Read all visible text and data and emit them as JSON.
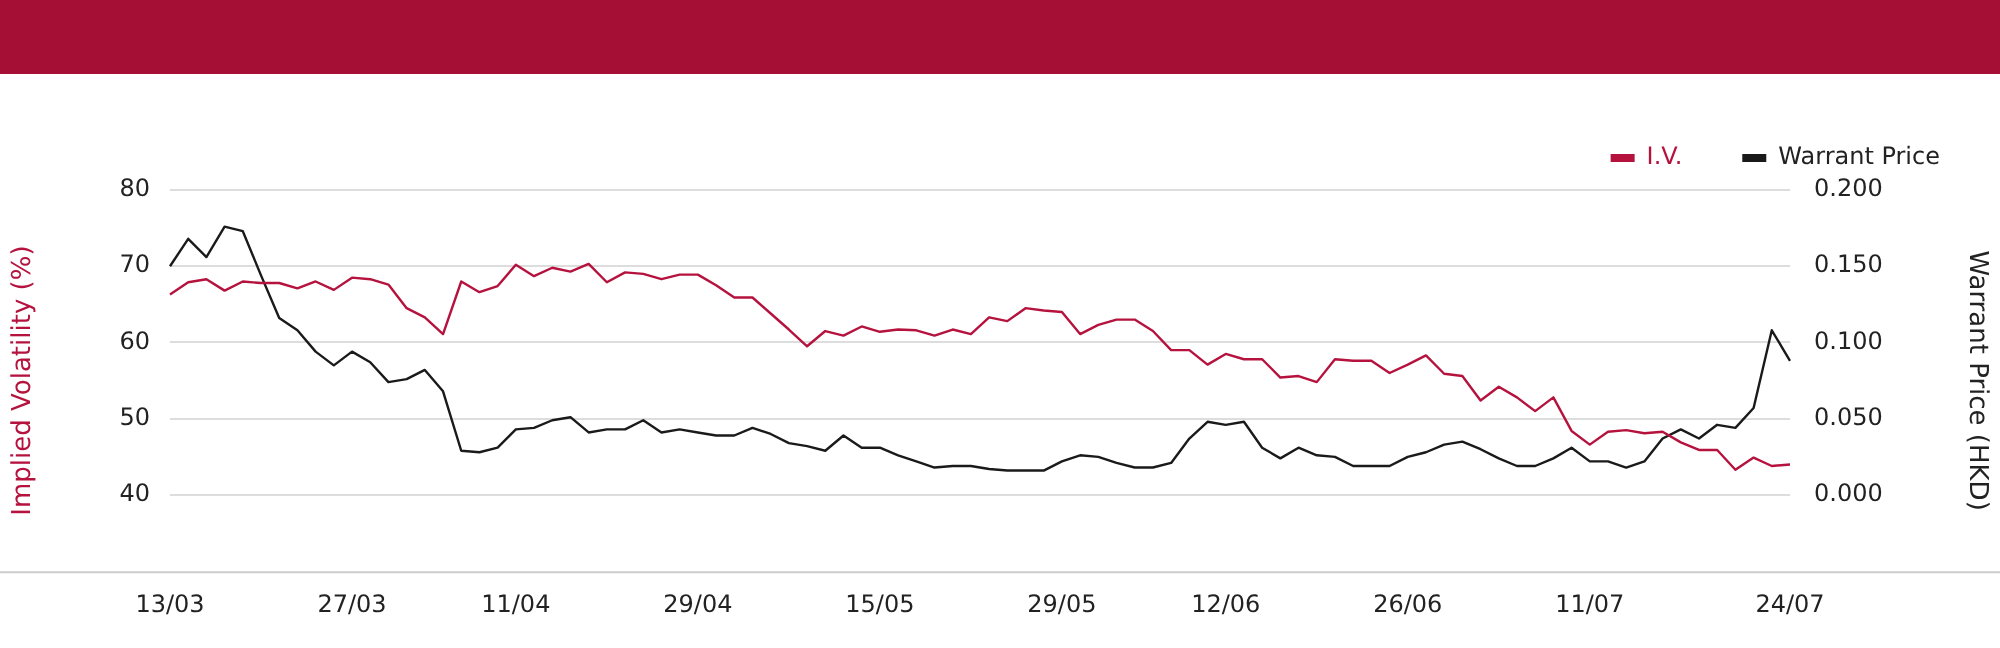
{
  "chart_data": {
    "type": "line",
    "categories": [
      "13/03",
      null,
      null,
      null,
      null,
      null,
      null,
      null,
      null,
      null,
      "27/03",
      null,
      null,
      null,
      null,
      null,
      null,
      null,
      null,
      "11/04",
      null,
      null,
      null,
      null,
      null,
      null,
      null,
      null,
      null,
      "29/04",
      null,
      null,
      null,
      null,
      null,
      null,
      null,
      null,
      null,
      "15/05",
      null,
      null,
      null,
      null,
      null,
      null,
      null,
      null,
      null,
      "29/05",
      null,
      null,
      null,
      null,
      null,
      null,
      null,
      null,
      "12/06",
      null,
      null,
      null,
      null,
      null,
      null,
      null,
      null,
      null,
      "26/06",
      null,
      null,
      null,
      null,
      null,
      null,
      null,
      null,
      null,
      "11/07",
      null,
      null,
      null,
      null,
      null,
      null,
      null,
      null,
      null,
      null,
      "24/07"
    ],
    "series": [
      {
        "name": "I.V.",
        "color": "#b5123e",
        "values": [
          66.3,
          67.9,
          68.3,
          66.8,
          68.0,
          67.8,
          67.8,
          67.1,
          68.0,
          66.9,
          68.5,
          68.3,
          67.6,
          64.5,
          63.3,
          61.1,
          68.0,
          66.6,
          67.4,
          70.2,
          68.7,
          69.8,
          69.3,
          70.3,
          67.9,
          69.2,
          69.0,
          68.3,
          68.9,
          68.9,
          67.5,
          65.9,
          65.9,
          63.8,
          61.7,
          59.5,
          61.5,
          60.9,
          62.1,
          61.4,
          61.7,
          61.6,
          60.9,
          61.7,
          61.1,
          63.3,
          62.8,
          64.5,
          64.2,
          64.0,
          61.1,
          62.3,
          63.0,
          63.0,
          61.5,
          59.0,
          59.0,
          57.1,
          58.5,
          57.8,
          57.8,
          55.4,
          55.6,
          54.8,
          57.8,
          57.6,
          57.6,
          56.0,
          57.1,
          58.3,
          55.9,
          55.6,
          52.4,
          54.2,
          52.8,
          51.0,
          52.8,
          48.4,
          46.6,
          48.3,
          48.5,
          48.1,
          48.3,
          46.9,
          45.9,
          45.9,
          43.3,
          44.9,
          43.8,
          44.0
        ]
      },
      {
        "name": "Warrant Price",
        "color": "#1a1a1a",
        "axis": "y2",
        "values": [
          0.15,
          0.168,
          0.156,
          0.176,
          0.173,
          0.144,
          0.116,
          0.108,
          0.094,
          0.085,
          0.094,
          0.087,
          0.074,
          0.076,
          0.082,
          0.068,
          0.029,
          0.028,
          0.031,
          0.043,
          0.044,
          0.049,
          0.051,
          0.041,
          0.043,
          0.043,
          0.049,
          0.041,
          0.043,
          0.041,
          0.039,
          0.039,
          0.044,
          0.04,
          0.034,
          0.032,
          0.029,
          0.039,
          0.031,
          0.031,
          0.026,
          0.022,
          0.018,
          0.019,
          0.019,
          0.017,
          0.016,
          0.016,
          0.016,
          0.022,
          0.026,
          0.025,
          0.021,
          0.018,
          0.018,
          0.021,
          0.037,
          0.048,
          0.046,
          0.048,
          0.031,
          0.024,
          0.031,
          0.026,
          0.025,
          0.019,
          0.019,
          0.019,
          0.025,
          0.028,
          0.033,
          0.035,
          0.03,
          0.024,
          0.019,
          0.019,
          0.024,
          0.031,
          0.022,
          0.022,
          0.018,
          0.022,
          0.037,
          0.043,
          0.037,
          0.046,
          0.044,
          0.057,
          0.108,
          0.088
        ]
      }
    ],
    "ylabel": "Implied Volatility (%)",
    "y2label": "Warrant Price (HKD)",
    "ylim": [
      30,
      80
    ],
    "yticks": [
      40,
      50,
      60,
      70,
      80
    ],
    "y2lim": [
      -0.05,
      0.2
    ],
    "y2ticks": [
      {
        "value": 0,
        "label": "0.000"
      },
      {
        "value": 0.05,
        "label": "0.050"
      },
      {
        "value": 0.1,
        "label": "0.100"
      },
      {
        "value": 0.15,
        "label": "0.150"
      },
      {
        "value": 0.2,
        "label": "0.200"
      }
    ],
    "grid": "y",
    "legend": "top right",
    "marker": "none",
    "line_style": "solid"
  }
}
